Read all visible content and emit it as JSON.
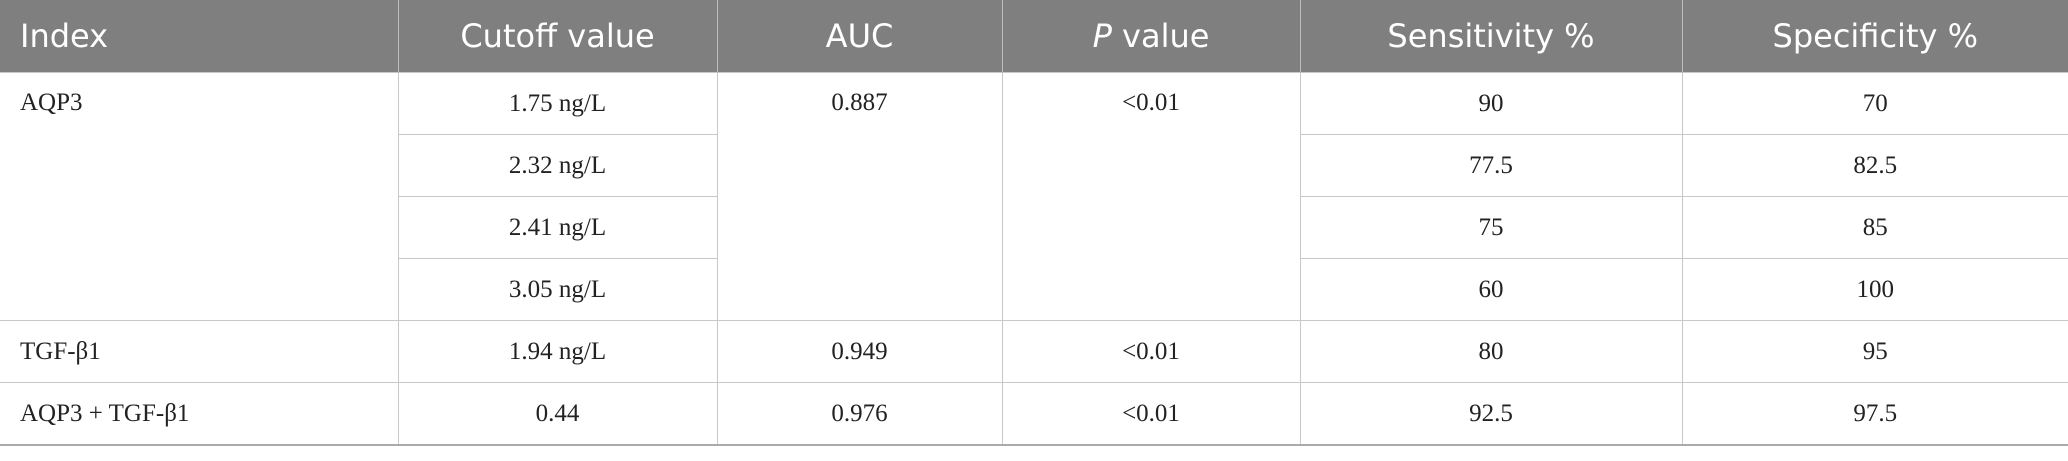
{
  "table": {
    "header": [
      "Index",
      "Cutoff value",
      "AUC",
      {
        "italic": "P",
        "text": " value"
      },
      "Sensitivity %",
      "Specificity %"
    ],
    "groups": [
      {
        "index": "AQP3",
        "auc": "0.887",
        "p": "<0.01",
        "rows": [
          {
            "cutoff": "1.75 ng/L",
            "sensitivity": "90",
            "specificity": "70"
          },
          {
            "cutoff": "2.32 ng/L",
            "sensitivity": "77.5",
            "specificity": "82.5"
          },
          {
            "cutoff": "2.41 ng/L",
            "sensitivity": "75",
            "specificity": "85"
          },
          {
            "cutoff": "3.05 ng/L",
            "sensitivity": "60",
            "specificity": "100"
          }
        ]
      },
      {
        "index": "TGF-β1",
        "auc": "0.949",
        "p": "<0.01",
        "rows": [
          {
            "cutoff": "1.94 ng/L",
            "sensitivity": "80",
            "specificity": "95"
          }
        ]
      },
      {
        "index": "AQP3 + TGF-β1",
        "auc": "0.976",
        "p": "<0.01",
        "rows": [
          {
            "cutoff": "0.44",
            "sensitivity": "92.5",
            "specificity": "97.5"
          }
        ]
      }
    ]
  }
}
